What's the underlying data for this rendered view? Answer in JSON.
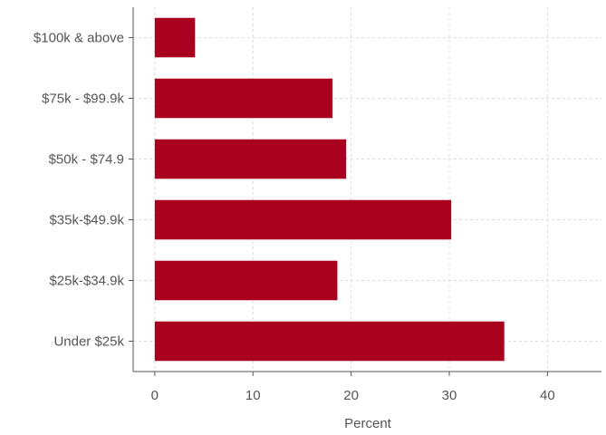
{
  "chart_data": {
    "type": "bar",
    "orientation": "horizontal",
    "categories": [
      "$100k & above",
      "$75k - $99.9k",
      "$50k - $74.9",
      "$35k-$49.9k",
      "$25k-$34.9k",
      "Under $25k"
    ],
    "values": [
      4.1,
      18.1,
      19.5,
      30.2,
      18.6,
      35.6
    ],
    "xlabel": "Percent",
    "ylabel": "",
    "xlim": [
      -2.2,
      45.5
    ],
    "xticks": [
      0,
      10,
      20,
      30,
      40
    ],
    "grid": true,
    "bar_color": "#a8001e"
  }
}
